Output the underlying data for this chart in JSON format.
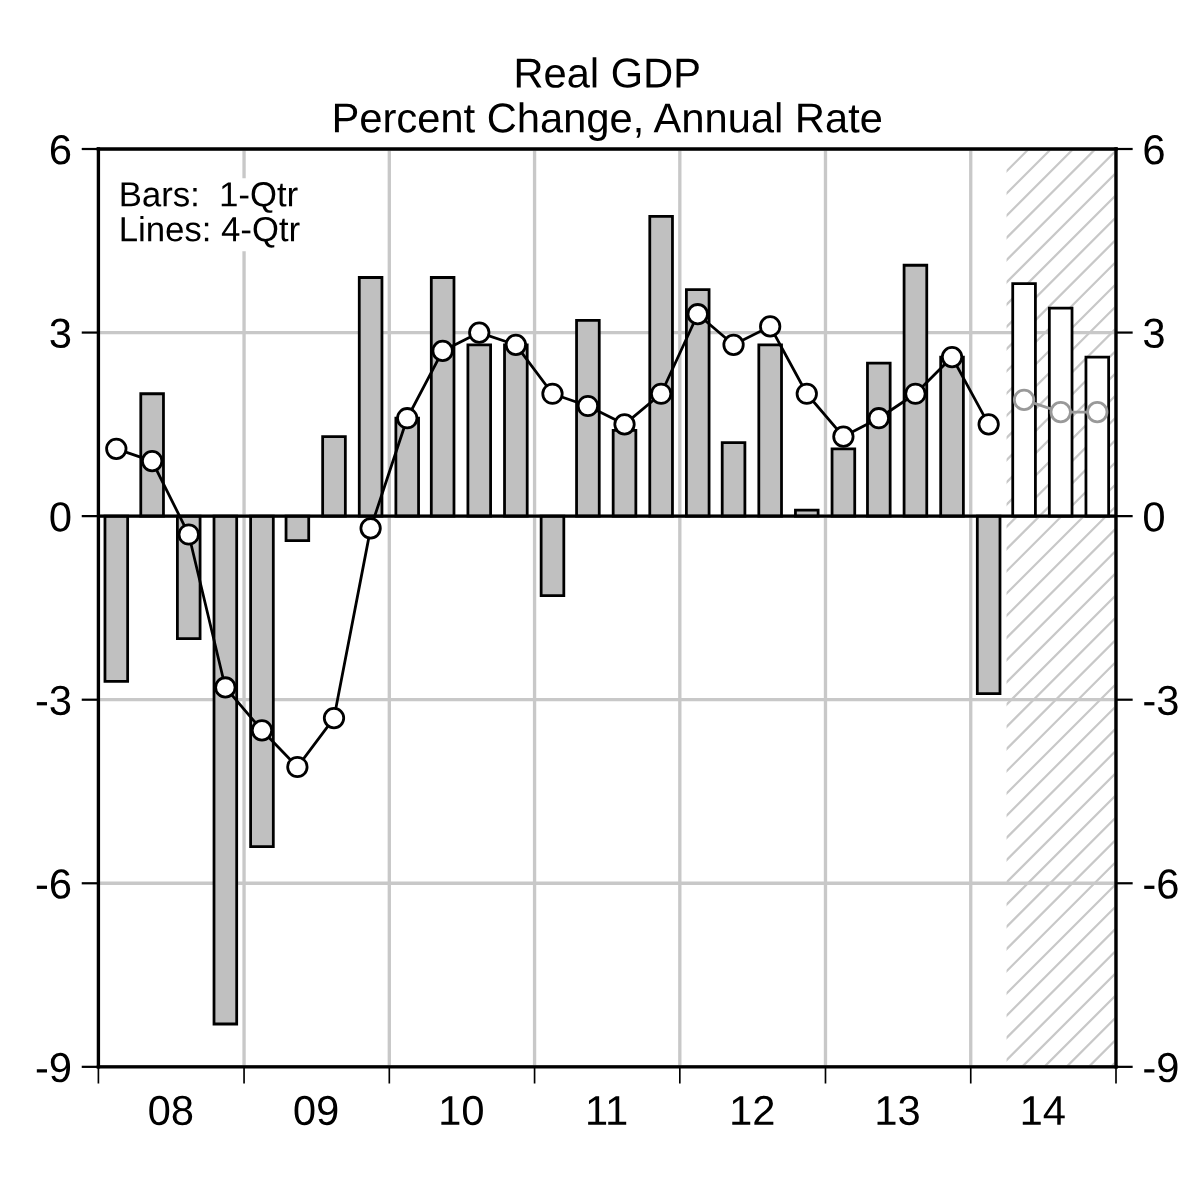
{
  "chart_data": {
    "type": "bar",
    "title": "Real GDP\nPercent Change, Annual Rate",
    "x": [
      "2008-02-15",
      "2008-05-15",
      "2008-08-15",
      "2008-11-15",
      "2009-02-15",
      "2009-05-15",
      "2009-08-15",
      "2009-11-15",
      "2010-02-15",
      "2010-05-15",
      "2010-08-15",
      "2010-11-15",
      "2011-02-15",
      "2011-05-15",
      "2011-08-15",
      "2011-11-15",
      "2012-02-15",
      "2012-05-15",
      "2012-08-15",
      "2012-11-15",
      "2013-02-15",
      "2013-05-15",
      "2013-08-15",
      "2013-11-15",
      "2014-02-15",
      "2014-05-15",
      "2014-08-15",
      "2014-11-15"
    ],
    "series": [
      {
        "values": [
          -2.7,
          2.0,
          -2.0,
          -8.3,
          -5.4,
          -0.4,
          1.3,
          3.9,
          1.6,
          3.9,
          2.8,
          2.8,
          -1.3,
          3.2,
          1.4,
          4.9,
          3.7,
          1.2,
          2.8,
          0.1,
          1.1,
          2.5,
          4.1,
          2.6,
          -2.9,
          3.8,
          3.4,
          2.6
        ],
        "colors": [
          "#c0c0c0",
          "#c0c0c0",
          "#c0c0c0",
          "#c0c0c0",
          "#c0c0c0",
          "#c0c0c0",
          "#c0c0c0",
          "#c0c0c0",
          "#c0c0c0",
          "#c0c0c0",
          "#c0c0c0",
          "#c0c0c0",
          "#c0c0c0",
          "#c0c0c0",
          "#c0c0c0",
          "#c0c0c0",
          "#c0c0c0",
          "#c0c0c0",
          "#c0c0c0",
          "#c0c0c0",
          "#c0c0c0",
          "#c0c0c0",
          "#c0c0c0",
          "#c0c0c0",
          "#c0c0c0",
          "#ffffff",
          "#ffffff",
          "#ffffff"
        ]
      },
      {
        "type": "line",
        "color": "#000000",
        "x": [
          "2008-02-15",
          "2008-05-15",
          "2008-08-15",
          "2008-11-15",
          "2009-02-15",
          "2009-05-15",
          "2009-08-15",
          "2009-11-15",
          "2010-02-15",
          "2010-05-15",
          "2010-08-15",
          "2010-11-15",
          "2011-02-15",
          "2011-05-15",
          "2011-08-15",
          "2011-11-15",
          "2012-02-15",
          "2012-05-15",
          "2012-08-15",
          "2012-11-15",
          "2013-02-15",
          "2013-05-15",
          "2013-08-15",
          "2013-11-15",
          "2014-02-15"
        ],
        "values": [
          1.1,
          0.9,
          -0.3,
          -2.8,
          -3.5,
          -4.1,
          -3.3,
          -0.2,
          1.6,
          2.7,
          3.0,
          2.8,
          2.0,
          1.8,
          1.5,
          2.0,
          3.3,
          2.8,
          3.1,
          2.0,
          1.3,
          1.6,
          2.0,
          2.6,
          1.5
        ]
      },
      {
        "type": "line",
        "color": "#999999",
        "x": [
          "2014-05-15",
          "2014-08-15",
          "2014-11-15"
        ],
        "values": [
          1.9,
          1.7,
          1.7
        ]
      }
    ],
    "marker": "circle",
    "line_style": "solid",
    "xlim": [
      "2008-01-01",
      "2015-01-01"
    ],
    "xticks": [
      {
        "value": "2008-07-01",
        "label": "08"
      },
      {
        "value": "2009-07-01",
        "label": "09"
      },
      {
        "value": "2010-07-01",
        "label": "10"
      },
      {
        "value": "2011-07-01",
        "label": "11"
      },
      {
        "value": "2012-07-01",
        "label": "12"
      },
      {
        "value": "2013-07-01",
        "label": "13"
      },
      {
        "value": "2014-07-01",
        "label": "14"
      },
      {
        "value": "2008-01-01",
        "label": null
      },
      {
        "value": "2009-01-01",
        "label": null
      },
      {
        "value": "2010-01-01",
        "label": null
      },
      {
        "value": "2011-01-01",
        "label": null
      },
      {
        "value": "2012-01-01",
        "label": null
      },
      {
        "value": "2013-01-01",
        "label": null
      },
      {
        "value": "2014-01-01",
        "label": null
      },
      {
        "value": "2015-01-01",
        "label": null
      }
    ],
    "ylim": [
      -9,
      6
    ],
    "yticks": [
      -9,
      -6,
      -3,
      0,
      3,
      6
    ],
    "y2lim": [
      -9,
      6
    ],
    "y2ticks": [
      -9,
      -6,
      -3,
      0,
      3,
      6
    ],
    "bands": [
      {
        "axis": "x",
        "from": "2014-04-01",
        "to": "2015-01-01",
        "color": "#c8c8c8"
      }
    ],
    "grid": true,
    "legend": false,
    "annotations": [
      "Bars:  1-Qtr\nLines: 4-Qtr"
    ]
  }
}
